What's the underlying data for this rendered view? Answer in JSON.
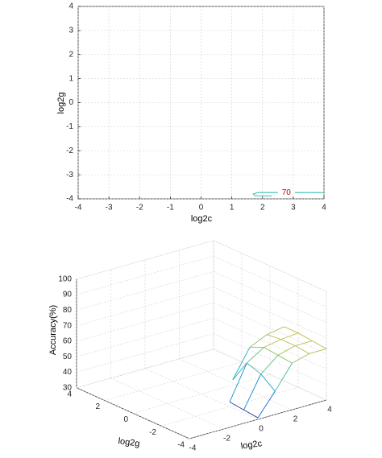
{
  "chart_data": [
    {
      "type": "contour",
      "xlabel": "log2c",
      "ylabel": "log2g",
      "xlim": [
        -4,
        4
      ],
      "ylim": [
        -4,
        4
      ],
      "xticks": [
        -4,
        -3,
        -2,
        -1,
        0,
        1,
        2,
        3,
        4
      ],
      "yticks": [
        -4,
        -3,
        -2,
        -1,
        0,
        1,
        2,
        3,
        4
      ],
      "grid": true,
      "level": 70,
      "color": "#4fc6c0",
      "label_color": "#c00000",
      "x": [
        4,
        3.05,
        null,
        2.5,
        1.85,
        1.7,
        1.75,
        1.9,
        2.3
      ],
      "y": [
        -3.74,
        -3.74,
        null,
        -3.74,
        -3.74,
        -3.8,
        -3.86,
        -3.88,
        -3.88
      ]
    },
    {
      "type": "surface",
      "xlabel": "log2c",
      "ylabel": "log2g",
      "zlabel": "Accuracy(%)",
      "xlim": [
        -4,
        4
      ],
      "ylim": [
        -4,
        4
      ],
      "zlim": [
        30,
        100
      ],
      "xticks": [
        -4,
        -2,
        0,
        2,
        4
      ],
      "yticks": [
        -4,
        -2,
        0,
        2,
        4
      ],
      "zticks": [
        30,
        40,
        50,
        60,
        70,
        80,
        90,
        100
      ],
      "grid": true,
      "colormap": "parula",
      "x": [
        -4,
        -3,
        -2,
        -1,
        0,
        1,
        2,
        3,
        4
      ],
      "y": [
        -4,
        -3,
        -2,
        -1,
        0,
        1,
        2,
        3,
        4
      ],
      "z": [
        [
          null,
          null,
          null,
          null,
          31,
          45,
          60,
          63,
          63
        ],
        [
          null,
          null,
          null,
          null,
          32,
          52,
          61,
          64,
          64
        ],
        [
          null,
          null,
          null,
          null,
          33,
          55,
          62,
          64,
          65
        ],
        [
          null,
          null,
          null,
          null,
          null,
          40,
          58,
          63,
          65
        ],
        [
          null,
          null,
          null,
          null,
          null,
          null,
          null,
          null,
          null
        ],
        [
          null,
          null,
          null,
          null,
          null,
          null,
          null,
          null,
          null
        ],
        [
          null,
          null,
          null,
          null,
          null,
          null,
          null,
          null,
          null
        ],
        [
          null,
          null,
          null,
          null,
          null,
          null,
          null,
          null,
          null
        ],
        [
          null,
          null,
          null,
          null,
          null,
          null,
          null,
          null,
          null
        ]
      ]
    }
  ]
}
